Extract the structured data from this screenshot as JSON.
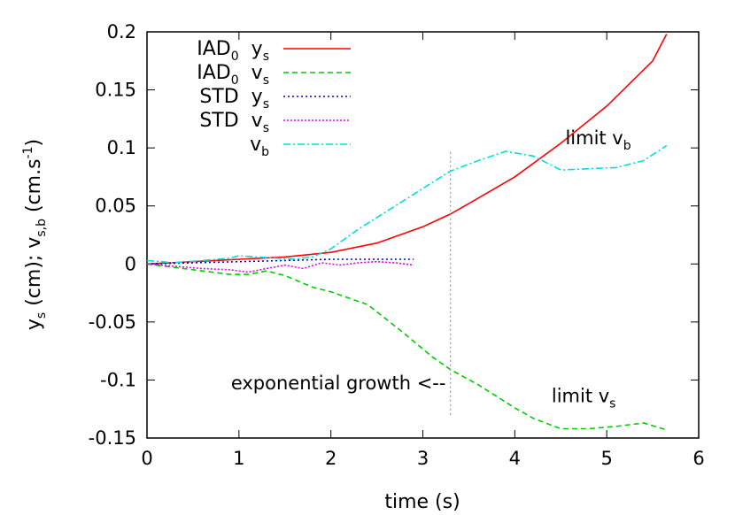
{
  "chart_data": {
    "type": "line",
    "title": "",
    "xlabel": "time (s)",
    "ylabel": {
      "y": "y",
      "y_sub": "s",
      "y_unit": " (cm);  ",
      "v": "v",
      "v_sub": "s,b",
      "v_unit": " (cm.s",
      "v_exp": "-1",
      "v_close": ")"
    },
    "xlim": [
      0,
      6
    ],
    "ylim": [
      -0.15,
      0.2
    ],
    "xticks": [
      0,
      1,
      2,
      3,
      4,
      5,
      6
    ],
    "xtick_labels": [
      "0",
      "1",
      "2",
      "3",
      "4",
      "5",
      "6"
    ],
    "yticks": [
      -0.15,
      -0.1,
      -0.05,
      0,
      0.05,
      0.1,
      0.15,
      0.2
    ],
    "ytick_labels": [
      "-0.15",
      "-0.1",
      "-0.05",
      "0",
      "0.05",
      "0.1",
      "0.15",
      "0.2"
    ],
    "series": [
      {
        "name": "IAD0 ys",
        "legend": {
          "main": "IAD",
          "sub0": "0",
          "var": "y",
          "sub": "s"
        },
        "color": "#ff0000",
        "dash": "none",
        "x": [
          0,
          0.5,
          1.0,
          1.5,
          2.0,
          2.5,
          3.0,
          3.3,
          3.5,
          4.0,
          4.5,
          5.0,
          5.5,
          5.65
        ],
        "y": [
          0.0,
          0.002,
          0.004,
          0.006,
          0.01,
          0.018,
          0.032,
          0.043,
          0.052,
          0.075,
          0.104,
          0.136,
          0.175,
          0.198
        ]
      },
      {
        "name": "IAD0 vs",
        "legend": {
          "main": "IAD",
          "sub0": "0",
          "var": "v",
          "sub": "s"
        },
        "color": "#00cc00",
        "dash": "6,4",
        "x": [
          0,
          0.5,
          0.9,
          1.1,
          1.3,
          1.5,
          1.8,
          2.0,
          2.4,
          2.8,
          3.1,
          3.3,
          3.6,
          4.0,
          4.2,
          4.5,
          4.8,
          5.1,
          5.4,
          5.65
        ],
        "y": [
          0.0,
          -0.005,
          -0.009,
          -0.009,
          -0.006,
          -0.01,
          -0.02,
          -0.024,
          -0.035,
          -0.06,
          -0.08,
          -0.091,
          -0.104,
          -0.124,
          -0.133,
          -0.142,
          -0.142,
          -0.14,
          -0.137,
          -0.143
        ]
      },
      {
        "name": "STD ys",
        "legend": {
          "main": "STD",
          "sub0": "",
          "var": "y",
          "sub": "s"
        },
        "color": "#0000cc",
        "dash": "2,3",
        "x": [
          0,
          0.5,
          1.0,
          1.5,
          2.0,
          2.5,
          2.9
        ],
        "y": [
          0.0,
          0.001,
          0.002,
          0.003,
          0.004,
          0.004,
          0.004
        ]
      },
      {
        "name": "STD vs",
        "legend": {
          "main": "STD",
          "sub0": "",
          "var": "v",
          "sub": "s"
        },
        "color": "#ee00ee",
        "dash": "2,2",
        "x": [
          0,
          0.3,
          0.6,
          0.9,
          1.1,
          1.3,
          1.5,
          1.7,
          1.9,
          2.1,
          2.3,
          2.5,
          2.7,
          2.9
        ],
        "y": [
          0.0,
          -0.002,
          -0.004,
          -0.005,
          -0.007,
          -0.004,
          -0.001,
          -0.004,
          0.001,
          -0.001,
          0.001,
          0.002,
          0.001,
          -0.001
        ]
      },
      {
        "name": "vb",
        "legend": {
          "main": "",
          "sub0": "",
          "var": "v",
          "sub": "b"
        },
        "color": "#00dddd",
        "dash": "8,3,2,3",
        "x": [
          0,
          0.3,
          0.6,
          0.9,
          1.0,
          1.2,
          1.4,
          1.6,
          1.8,
          2.0,
          2.3,
          2.6,
          3.0,
          3.3,
          3.6,
          3.9,
          4.2,
          4.5,
          4.8,
          5.1,
          5.4,
          5.65
        ],
        "y": [
          0.003,
          0.001,
          0.003,
          0.005,
          0.007,
          0.006,
          0.005,
          0.004,
          0.006,
          0.013,
          0.03,
          0.045,
          0.065,
          0.08,
          0.089,
          0.097,
          0.093,
          0.081,
          0.082,
          0.083,
          0.089,
          0.102
        ]
      }
    ],
    "vline": {
      "x": 3.3,
      "y_from": -0.13,
      "y_to": 0.098,
      "color": "#999999"
    },
    "annotations": [
      {
        "text": "limit v",
        "sub": "b",
        "x": 4.55,
        "y": 0.103,
        "anchor": "start"
      },
      {
        "text": "limit v",
        "sub": "s",
        "x": 4.4,
        "y": -0.119,
        "anchor": "start"
      },
      {
        "text": "exponential growth <--",
        "sub": "",
        "x": 3.25,
        "y": -0.108,
        "anchor": "end"
      }
    ],
    "legend_position": "top-left"
  }
}
